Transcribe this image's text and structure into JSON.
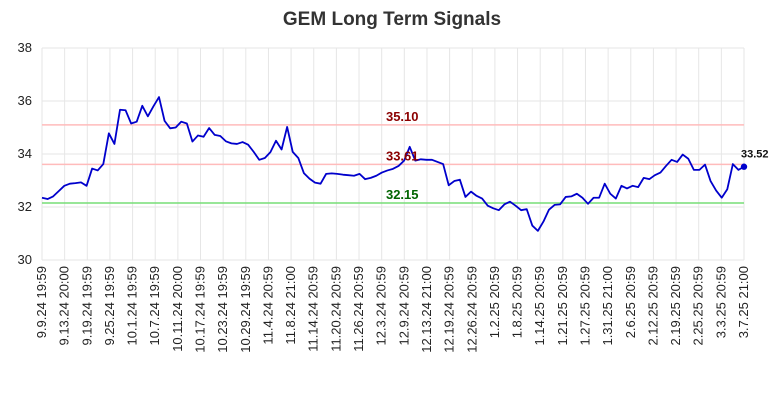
{
  "chart_data": {
    "type": "line",
    "title": "GEM Long Term Signals",
    "xlabel": "",
    "ylabel": "",
    "ylim": [
      30,
      38
    ],
    "yticks": [
      30,
      32,
      34,
      36,
      38
    ],
    "grid": true,
    "x_tick_labels": [
      "9.9.24 19:59",
      "9.13.24 20:00",
      "9.19.24 19:59",
      "9.25.24 19:59",
      "10.1.24 19:59",
      "10.7.24 19:59",
      "10.11.24 20:00",
      "10.17.24 19:59",
      "10.23.24 19:59",
      "10.29.24 19:59",
      "11.4.24 20:59",
      "11.8.24 21:00",
      "11.14.24 20:59",
      "11.20.24 20:59",
      "11.26.24 20:59",
      "12.3.24 20:59",
      "12.9.24 20:59",
      "12.13.24 21:00",
      "12.19.24 20:59",
      "12.26.24 20:59",
      "1.2.25 20:59",
      "1.8.25 20:59",
      "1.14.25 20:59",
      "1.21.25 20:59",
      "1.27.25 20:59",
      "1.31.25 21:00",
      "2.6.25 20:59",
      "2.12.25 20:59",
      "2.19.25 20:59",
      "2.25.25 20:59",
      "3.3.25 20:59",
      "3.7.25 21:00"
    ],
    "series": [
      {
        "name": "",
        "color": "#0000cc",
        "values": [
          32.35,
          32.3,
          32.4,
          32.6,
          32.8,
          32.88,
          32.9,
          32.93,
          32.8,
          33.45,
          33.38,
          33.62,
          34.78,
          34.38,
          35.67,
          35.65,
          35.15,
          35.22,
          35.82,
          35.42,
          35.8,
          36.15,
          35.25,
          34.97,
          35.0,
          35.22,
          35.15,
          34.47,
          34.7,
          34.65,
          34.98,
          34.72,
          34.68,
          34.48,
          34.4,
          34.38,
          34.45,
          34.35,
          34.08,
          33.78,
          33.85,
          34.07,
          34.5,
          34.17,
          35.02,
          34.08,
          33.85,
          33.28,
          33.07,
          32.92,
          32.88,
          33.25,
          33.27,
          33.25,
          33.22,
          33.2,
          33.18,
          33.25,
          33.05,
          33.1,
          33.18,
          33.3,
          33.38,
          33.44,
          33.55,
          33.75,
          34.27,
          33.75,
          33.8,
          33.78,
          33.78,
          33.7,
          33.62,
          32.82,
          32.98,
          33.03,
          32.38,
          32.58,
          32.42,
          32.32,
          32.05,
          31.95,
          31.88,
          32.1,
          32.2,
          32.05,
          31.88,
          31.92,
          31.3,
          31.1,
          31.45,
          31.9,
          32.08,
          32.1,
          32.38,
          32.4,
          32.5,
          32.35,
          32.12,
          32.35,
          32.35,
          32.88,
          32.5,
          32.32,
          32.8,
          32.7,
          32.8,
          32.75,
          33.1,
          33.05,
          33.2,
          33.3,
          33.55,
          33.78,
          33.7,
          33.98,
          33.82,
          33.4,
          33.4,
          33.6,
          32.98,
          32.62,
          32.35,
          32.67,
          33.62,
          33.4,
          33.52
        ]
      }
    ],
    "last_value_label": "33.52",
    "annotations": [
      {
        "label": "35.10",
        "value": 35.1,
        "line_color": "#ffbbbb",
        "text_color": "#8b0000"
      },
      {
        "label": "33.61",
        "value": 33.61,
        "line_color": "#ffbbbb",
        "text_color": "#8b0000"
      },
      {
        "label": "32.15",
        "value": 32.15,
        "line_color": "#77dd77",
        "text_color": "#006400"
      }
    ]
  }
}
